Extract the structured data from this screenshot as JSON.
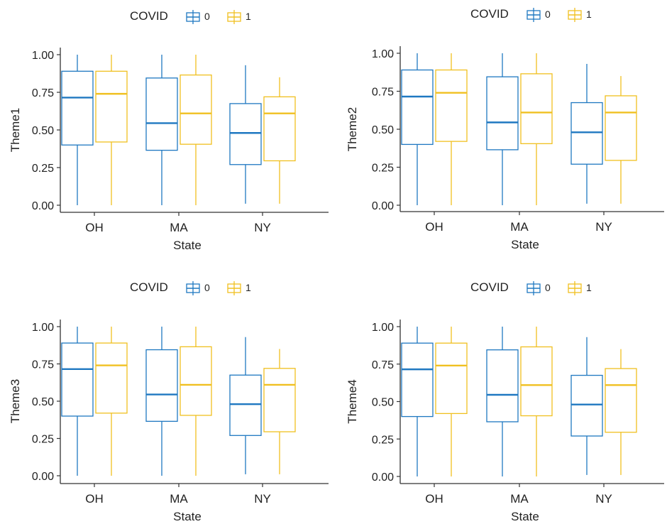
{
  "legend": {
    "title": "COVID",
    "entries": [
      {
        "label": "0",
        "color": "#1f78c1"
      },
      {
        "label": "1",
        "color": "#f0c020"
      }
    ]
  },
  "chart_data": [
    {
      "type": "box",
      "xlabel": "State",
      "ylabel": "Theme1",
      "categories": [
        "OH",
        "MA",
        "NY"
      ],
      "ylim": [
        0,
        1
      ],
      "yticks": [
        "0.00",
        "0.25",
        "0.50",
        "0.75",
        "1.00"
      ],
      "series": [
        {
          "name": "0",
          "boxes": [
            {
              "min": 0.0,
              "q1": 0.4,
              "median": 0.715,
              "q3": 0.89,
              "max": 1.0
            },
            {
              "min": 0.0,
              "q1": 0.365,
              "median": 0.545,
              "q3": 0.845,
              "max": 1.0
            },
            {
              "min": 0.01,
              "q1": 0.27,
              "median": 0.48,
              "q3": 0.675,
              "max": 0.93
            }
          ]
        },
        {
          "name": "1",
          "boxes": [
            {
              "min": 0.0,
              "q1": 0.42,
              "median": 0.74,
              "q3": 0.89,
              "max": 1.0
            },
            {
              "min": 0.0,
              "q1": 0.405,
              "median": 0.61,
              "q3": 0.865,
              "max": 1.0
            },
            {
              "min": 0.01,
              "q1": 0.295,
              "median": 0.61,
              "q3": 0.72,
              "max": 0.85
            }
          ]
        }
      ]
    },
    {
      "type": "box",
      "xlabel": "State",
      "ylabel": "Theme2",
      "categories": [
        "OH",
        "MA",
        "NY"
      ],
      "ylim": [
        0,
        1
      ],
      "yticks": [
        "0.00",
        "0.25",
        "0.50",
        "0.75",
        "1.00"
      ],
      "series": [
        {
          "name": "0",
          "boxes": [
            {
              "min": 0.0,
              "q1": 0.4,
              "median": 0.715,
              "q3": 0.89,
              "max": 1.0
            },
            {
              "min": 0.0,
              "q1": 0.365,
              "median": 0.545,
              "q3": 0.845,
              "max": 1.0
            },
            {
              "min": 0.01,
              "q1": 0.27,
              "median": 0.48,
              "q3": 0.675,
              "max": 0.93
            }
          ]
        },
        {
          "name": "1",
          "boxes": [
            {
              "min": 0.0,
              "q1": 0.42,
              "median": 0.74,
              "q3": 0.89,
              "max": 1.0
            },
            {
              "min": 0.0,
              "q1": 0.405,
              "median": 0.61,
              "q3": 0.865,
              "max": 1.0
            },
            {
              "min": 0.01,
              "q1": 0.295,
              "median": 0.61,
              "q3": 0.72,
              "max": 0.85
            }
          ]
        }
      ]
    },
    {
      "type": "box",
      "xlabel": "State",
      "ylabel": "Theme3",
      "categories": [
        "OH",
        "MA",
        "NY"
      ],
      "ylim": [
        0,
        1
      ],
      "yticks": [
        "0.00",
        "0.25",
        "0.50",
        "0.75",
        "1.00"
      ],
      "series": [
        {
          "name": "0",
          "boxes": [
            {
              "min": 0.0,
              "q1": 0.4,
              "median": 0.715,
              "q3": 0.89,
              "max": 1.0
            },
            {
              "min": 0.0,
              "q1": 0.365,
              "median": 0.545,
              "q3": 0.845,
              "max": 1.0
            },
            {
              "min": 0.01,
              "q1": 0.27,
              "median": 0.48,
              "q3": 0.675,
              "max": 0.93
            }
          ]
        },
        {
          "name": "1",
          "boxes": [
            {
              "min": 0.0,
              "q1": 0.42,
              "median": 0.74,
              "q3": 0.89,
              "max": 1.0
            },
            {
              "min": 0.0,
              "q1": 0.405,
              "median": 0.61,
              "q3": 0.865,
              "max": 1.0
            },
            {
              "min": 0.01,
              "q1": 0.295,
              "median": 0.61,
              "q3": 0.72,
              "max": 0.85
            }
          ]
        }
      ]
    },
    {
      "type": "box",
      "xlabel": "State",
      "ylabel": "Theme4",
      "categories": [
        "OH",
        "MA",
        "NY"
      ],
      "ylim": [
        0,
        1
      ],
      "yticks": [
        "0.00",
        "0.25",
        "0.50",
        "0.75",
        "1.00"
      ],
      "series": [
        {
          "name": "0",
          "boxes": [
            {
              "min": 0.0,
              "q1": 0.4,
              "median": 0.715,
              "q3": 0.89,
              "max": 1.0
            },
            {
              "min": 0.0,
              "q1": 0.365,
              "median": 0.545,
              "q3": 0.845,
              "max": 1.0
            },
            {
              "min": 0.01,
              "q1": 0.27,
              "median": 0.48,
              "q3": 0.675,
              "max": 0.93
            }
          ]
        },
        {
          "name": "1",
          "boxes": [
            {
              "min": 0.0,
              "q1": 0.42,
              "median": 0.74,
              "q3": 0.89,
              "max": 1.0
            },
            {
              "min": 0.0,
              "q1": 0.405,
              "median": 0.61,
              "q3": 0.865,
              "max": 1.0
            },
            {
              "min": 0.01,
              "q1": 0.295,
              "median": 0.61,
              "q3": 0.72,
              "max": 0.85
            }
          ]
        }
      ]
    }
  ]
}
